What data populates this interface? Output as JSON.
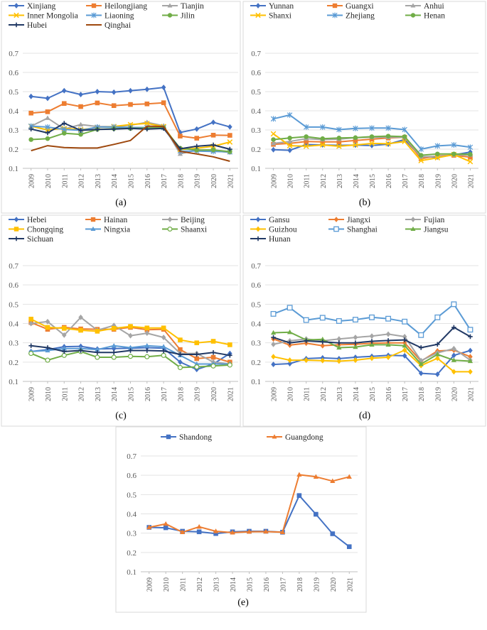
{
  "chart_data": [
    {
      "type": "line",
      "panel_label": "(a)",
      "x": [
        "2009",
        "2010",
        "2011",
        "2012",
        "2013",
        "2014",
        "2015",
        "2016",
        "2017",
        "2018",
        "2019",
        "2020",
        "2021"
      ],
      "ylim": [
        0.1,
        0.7
      ],
      "yticks": [
        "0.1",
        "0.2",
        "0.3",
        "0.4",
        "0.5",
        "0.6",
        "0.7"
      ],
      "series": [
        {
          "name": "Xinjiang",
          "color": "#4472C4",
          "marker": "diamond",
          "values": [
            0.475,
            0.465,
            0.505,
            0.485,
            0.5,
            0.497,
            0.505,
            0.512,
            0.522,
            0.287,
            0.305,
            0.34,
            0.316
          ]
        },
        {
          "name": "Heilongjiang",
          "color": "#ED7D31",
          "marker": "square",
          "values": [
            0.388,
            0.395,
            0.438,
            0.422,
            0.441,
            0.427,
            0.433,
            0.436,
            0.442,
            0.268,
            0.257,
            0.273,
            0.272
          ]
        },
        {
          "name": "Tianjin",
          "color": "#A5A5A5",
          "marker": "triangle",
          "values": [
            0.32,
            0.362,
            0.305,
            0.328,
            0.318,
            0.317,
            0.325,
            0.34,
            0.322,
            0.175,
            0.196,
            0.191,
            0.183
          ]
        },
        {
          "name": "Inner Mongolia",
          "color": "#FFC000",
          "marker": "x",
          "values": [
            0.32,
            0.3,
            0.308,
            0.302,
            0.313,
            0.318,
            0.328,
            0.334,
            0.318,
            0.198,
            0.205,
            0.215,
            0.237
          ]
        },
        {
          "name": "Liaoning",
          "color": "#5B9BD5",
          "marker": "star",
          "values": [
            0.32,
            0.315,
            0.303,
            0.298,
            0.315,
            0.316,
            0.313,
            0.313,
            0.312,
            0.19,
            0.19,
            0.188,
            0.186
          ]
        },
        {
          "name": "Jilin",
          "color": "#70AD47",
          "marker": "circle",
          "values": [
            0.25,
            0.255,
            0.283,
            0.277,
            0.303,
            0.307,
            0.308,
            0.31,
            0.312,
            0.205,
            0.195,
            0.196,
            0.187
          ]
        },
        {
          "name": "Hubei",
          "color": "#203864",
          "marker": "plus",
          "values": [
            0.305,
            0.285,
            0.335,
            0.298,
            0.303,
            0.305,
            0.308,
            0.305,
            0.308,
            0.202,
            0.215,
            0.222,
            0.2
          ]
        },
        {
          "name": "Qinghai",
          "color": "#9E480E",
          "marker": "none",
          "values": [
            0.192,
            0.218,
            0.208,
            0.206,
            0.206,
            0.225,
            0.245,
            0.32,
            0.318,
            0.188,
            0.175,
            0.16,
            0.137
          ]
        }
      ]
    },
    {
      "type": "line",
      "panel_label": "(b)",
      "x": [
        "2009",
        "2010",
        "2011",
        "2012",
        "2013",
        "2014",
        "2015",
        "2016",
        "2017",
        "2018",
        "2019",
        "2020",
        "2021"
      ],
      "ylim": [
        0.1,
        0.7
      ],
      "yticks": [
        "0.1",
        "0.2",
        "0.3",
        "0.4",
        "0.5",
        "0.6",
        "0.7"
      ],
      "series": [
        {
          "name": "Yunnan",
          "color": "#4472C4",
          "marker": "diamond",
          "values": [
            0.197,
            0.194,
            0.224,
            0.222,
            0.22,
            0.221,
            0.219,
            0.226,
            0.25,
            0.158,
            0.159,
            0.17,
            0.185
          ]
        },
        {
          "name": "Guangxi",
          "color": "#ED7D31",
          "marker": "square",
          "values": [
            0.225,
            0.23,
            0.24,
            0.238,
            0.238,
            0.245,
            0.252,
            0.258,
            0.262,
            0.15,
            0.165,
            0.168,
            0.158
          ]
        },
        {
          "name": "Anhui",
          "color": "#A5A5A5",
          "marker": "triangle",
          "values": [
            0.23,
            0.24,
            0.255,
            0.25,
            0.252,
            0.26,
            0.262,
            0.262,
            0.262,
            0.16,
            0.162,
            0.17,
            0.17
          ]
        },
        {
          "name": "Shanxi",
          "color": "#FFC000",
          "marker": "x",
          "values": [
            0.28,
            0.218,
            0.215,
            0.222,
            0.215,
            0.222,
            0.23,
            0.228,
            0.24,
            0.14,
            0.155,
            0.172,
            0.135
          ]
        },
        {
          "name": "Zhejiang",
          "color": "#5B9BD5",
          "marker": "star",
          "values": [
            0.358,
            0.378,
            0.315,
            0.315,
            0.302,
            0.308,
            0.31,
            0.31,
            0.302,
            0.2,
            0.217,
            0.222,
            0.21
          ]
        },
        {
          "name": "Henan",
          "color": "#70AD47",
          "marker": "circle",
          "values": [
            0.25,
            0.258,
            0.265,
            0.255,
            0.258,
            0.26,
            0.265,
            0.268,
            0.265,
            0.168,
            0.175,
            0.175,
            0.173
          ]
        }
      ]
    },
    {
      "type": "line",
      "panel_label": "(c)",
      "x": [
        "2009",
        "2010",
        "2011",
        "2012",
        "2013",
        "2014",
        "2015",
        "2016",
        "2017",
        "2018",
        "2019",
        "2020",
        "2021"
      ],
      "ylim": [
        0.1,
        0.7
      ],
      "yticks": [
        "0.1",
        "0.2",
        "0.3",
        "0.4",
        "0.5",
        "0.6",
        "0.7"
      ],
      "series": [
        {
          "name": "Hebei",
          "color": "#4472C4",
          "marker": "diamond",
          "values": [
            0.255,
            0.265,
            0.28,
            0.282,
            0.268,
            0.27,
            0.272,
            0.275,
            0.272,
            0.2,
            0.162,
            0.19,
            0.245
          ]
        },
        {
          "name": "Hainan",
          "color": "#ED7D31",
          "marker": "square",
          "values": [
            0.405,
            0.37,
            0.38,
            0.372,
            0.37,
            0.37,
            0.38,
            0.368,
            0.37,
            0.265,
            0.218,
            0.225,
            0.2
          ]
        },
        {
          "name": "Beijing",
          "color": "#A5A5A5",
          "marker": "diamond",
          "values": [
            0.4,
            0.41,
            0.34,
            0.432,
            0.365,
            0.39,
            0.337,
            0.35,
            0.328,
            0.245,
            0.245,
            0.2,
            0.19
          ]
        },
        {
          "name": "Chongqing",
          "color": "#FFC000",
          "marker": "square",
          "values": [
            0.423,
            0.38,
            0.375,
            0.365,
            0.36,
            0.375,
            0.385,
            0.377,
            0.377,
            0.315,
            0.3,
            0.308,
            0.29
          ]
        },
        {
          "name": "Ningxia",
          "color": "#5B9BD5",
          "marker": "triangle",
          "values": [
            0.255,
            0.26,
            0.27,
            0.27,
            0.265,
            0.285,
            0.275,
            0.285,
            0.28,
            0.235,
            0.19,
            0.19,
            0.19
          ]
        },
        {
          "name": "Shaanxi",
          "color": "#70AD47",
          "marker": "circle-open",
          "values": [
            0.245,
            0.21,
            0.235,
            0.255,
            0.225,
            0.225,
            0.23,
            0.228,
            0.235,
            0.172,
            0.175,
            0.18,
            0.185
          ]
        },
        {
          "name": "Sichuan",
          "color": "#203864",
          "marker": "plus",
          "values": [
            0.285,
            0.275,
            0.255,
            0.26,
            0.25,
            0.25,
            0.26,
            0.26,
            0.258,
            0.24,
            0.24,
            0.25,
            0.235
          ]
        }
      ]
    },
    {
      "type": "line",
      "panel_label": "(d)",
      "x": [
        "2009",
        "2010",
        "2011",
        "2012",
        "2013",
        "2014",
        "2015",
        "2016",
        "2017",
        "2018",
        "2019",
        "2020",
        "2021"
      ],
      "ylim": [
        0.1,
        0.7
      ],
      "yticks": [
        "0.1",
        "0.2",
        "0.3",
        "0.4",
        "0.5",
        "0.6",
        "0.7"
      ],
      "series": [
        {
          "name": "Gansu",
          "color": "#4472C4",
          "marker": "diamond",
          "values": [
            0.188,
            0.192,
            0.218,
            0.222,
            0.218,
            0.225,
            0.23,
            0.235,
            0.233,
            0.142,
            0.137,
            0.235,
            0.26
          ]
        },
        {
          "name": "Jiangxi",
          "color": "#ED7D31",
          "marker": "diamond",
          "values": [
            0.32,
            0.288,
            0.298,
            0.285,
            0.29,
            0.292,
            0.298,
            0.3,
            0.3,
            0.205,
            0.258,
            0.262,
            0.228
          ]
        },
        {
          "name": "Fujian",
          "color": "#A5A5A5",
          "marker": "diamond",
          "values": [
            0.292,
            0.31,
            0.32,
            0.31,
            0.32,
            0.328,
            0.335,
            0.345,
            0.332,
            0.208,
            0.248,
            0.27,
            0.21
          ]
        },
        {
          "name": "Guizhou",
          "color": "#FFC000",
          "marker": "diamond",
          "values": [
            0.228,
            0.21,
            0.21,
            0.208,
            0.205,
            0.21,
            0.22,
            0.225,
            0.262,
            0.182,
            0.22,
            0.15,
            0.15
          ]
        },
        {
          "name": "Shanghai",
          "color": "#5B9BD5",
          "marker": "square-open",
          "values": [
            0.45,
            0.482,
            0.418,
            0.43,
            0.413,
            0.42,
            0.432,
            0.425,
            0.41,
            0.34,
            0.432,
            0.5,
            0.368
          ]
        },
        {
          "name": "Jiangsu",
          "color": "#70AD47",
          "marker": "triangle",
          "values": [
            0.352,
            0.355,
            0.315,
            0.318,
            0.275,
            0.278,
            0.29,
            0.29,
            0.285,
            0.19,
            0.24,
            0.21,
            0.205
          ]
        },
        {
          "name": "Hunan",
          "color": "#203864",
          "marker": "plus",
          "values": [
            0.328,
            0.3,
            0.31,
            0.305,
            0.3,
            0.3,
            0.308,
            0.312,
            0.315,
            0.275,
            0.292,
            0.38,
            0.332
          ]
        }
      ]
    },
    {
      "type": "line",
      "panel_label": "(e)",
      "x": [
        "2009",
        "2010",
        "2011",
        "2012",
        "2013",
        "2014",
        "2015",
        "2016",
        "2017",
        "2018",
        "2019",
        "2020",
        "2021"
      ],
      "ylim": [
        0.1,
        0.7
      ],
      "yticks": [
        "0.1",
        "0.2",
        "0.3",
        "0.4",
        "0.5",
        "0.6",
        "0.7"
      ],
      "series": [
        {
          "name": "Shandong",
          "color": "#4472C4",
          "marker": "square",
          "values": [
            0.33,
            0.328,
            0.31,
            0.307,
            0.298,
            0.307,
            0.31,
            0.31,
            0.305,
            0.495,
            0.398,
            0.297,
            0.23
          ]
        },
        {
          "name": "Guangdong",
          "color": "#ED7D31",
          "marker": "triangle",
          "values": [
            0.33,
            0.348,
            0.305,
            0.333,
            0.31,
            0.303,
            0.307,
            0.308,
            0.305,
            0.603,
            0.592,
            0.57,
            0.592
          ]
        }
      ]
    }
  ]
}
